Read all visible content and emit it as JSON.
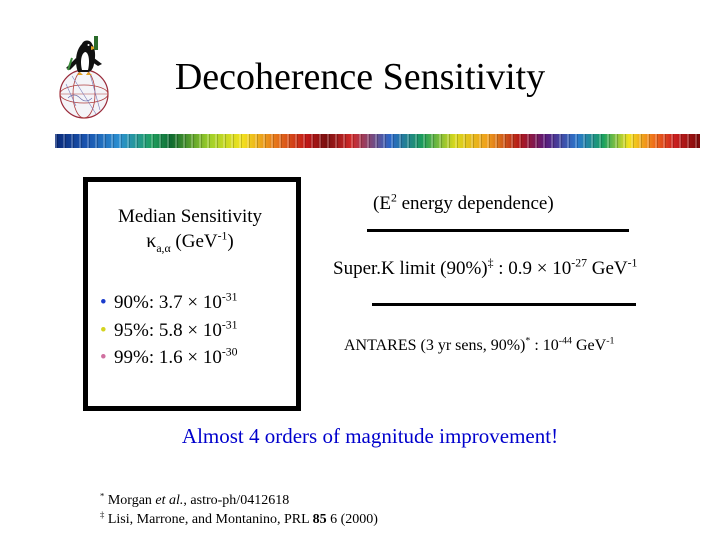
{
  "slide": {
    "title": "Decoherence Sensitivity"
  },
  "logo": {
    "icon": "penguin-on-globe-icon"
  },
  "box": {
    "heading_line1": "Median Sensitivity",
    "kappa_symbol": "κ",
    "kappa_subscript": "a,α",
    "unit_prefix": "(GeV",
    "unit_exponent": "-1",
    "unit_suffix": ")",
    "items": [
      {
        "bullet": "•",
        "bullet_color": "#1a3ccc",
        "label": "90%: 3.7 × 10",
        "exponent": "-31"
      },
      {
        "bullet": "•",
        "bullet_color": "#d4d420",
        "label": "95%: 5.8 × 10",
        "exponent": "-31"
      },
      {
        "bullet": "•",
        "bullet_color": "#d070a0",
        "label": "99%: 1.6 × 10",
        "exponent": "-30"
      }
    ]
  },
  "right": {
    "energy_prefix": "(E",
    "energy_exponent": "2",
    "energy_suffix": " energy dependence)",
    "superk_prefix": "Super.K limit (90%)",
    "superk_mark": "‡",
    "superk_value": " : 0.9 × 10",
    "superk_exponent": "-27",
    "superk_unit": " GeV",
    "superk_unit_exponent": "-1",
    "antares_prefix": "ANTARES (3 yr sens, 90%)",
    "antares_mark": "*",
    "antares_value": " : 10",
    "antares_exponent": "-44",
    "antares_unit": " GeV",
    "antares_unit_exponent": "-1"
  },
  "conclusion": {
    "text": "Almost 4 orders of magnitude improvement!",
    "color": "#0000cc"
  },
  "references": {
    "ref1_mark": "*",
    "ref1_author": " Morgan ",
    "ref1_etal": "et al.",
    "ref1_rest": ", astro-ph/0412618",
    "ref2_mark": "‡",
    "ref2_authors": " Lisi, Marrone, and Montanino, PRL ",
    "ref2_volume": "85",
    "ref2_rest": " 6 (2000)"
  }
}
